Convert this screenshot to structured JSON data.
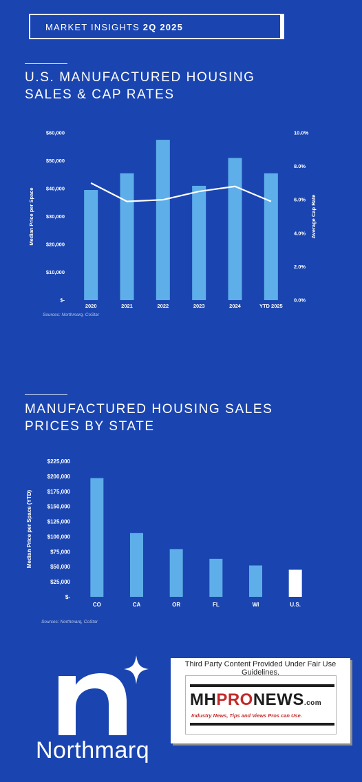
{
  "header": {
    "label_prefix": "MARKET INSIGHTS",
    "label_bold": "2Q 2025"
  },
  "colors": {
    "background": "#1a45b0",
    "bar": "#5eaee9",
    "line": "#ffffff",
    "us_bar": "#ffffff"
  },
  "section1": {
    "title_line1": "U.S. MANUFACTURED HOUSING",
    "title_line2": "SALES & CAP RATES",
    "source": "Sources: Northmarq, CoStar"
  },
  "section2": {
    "title_line1": "MANUFACTURED HOUSING SALES",
    "title_line2": "PRICES BY STATE",
    "source": "Sources: Northmarq, CoStar"
  },
  "chart_data": [
    {
      "type": "bar",
      "categories": [
        "2020",
        "2021",
        "2022",
        "2023",
        "2024",
        "YTD 2025"
      ],
      "series": [
        {
          "values": [
            39500,
            45500,
            57500,
            41000,
            51000,
            45500
          ],
          "axis": "left"
        },
        {
          "type": "line",
          "values": [
            7.0,
            5.9,
            6.0,
            6.5,
            6.8,
            5.9
          ],
          "axis": "right"
        }
      ],
      "ylabel": "Median Price per Space",
      "y2label": "Average Cap Rate",
      "ylim": [
        0,
        60000
      ],
      "y2lim": [
        0,
        10
      ],
      "yticks": [
        "$-",
        "$10,000",
        "$20,000",
        "$30,000",
        "$40,000",
        "$50,000",
        "$60,000"
      ],
      "y2ticks": [
        "0.0%",
        "2.0%",
        "4.0%",
        "6.0%",
        "8.0%",
        "10.0%"
      ],
      "grid": false,
      "legend": "none"
    },
    {
      "type": "bar",
      "categories": [
        "CO",
        "CA",
        "OR",
        "FL",
        "WI",
        "U.S."
      ],
      "values": [
        197000,
        106000,
        79000,
        63000,
        52000,
        45000
      ],
      "highlight": "U.S.",
      "ylabel": "Median Price per Space (YTD)",
      "ylim": [
        0,
        225000
      ],
      "yticks": [
        "$-",
        "$25,000",
        "$50,000",
        "$75,000",
        "$100,000",
        "$125,000",
        "$150,000",
        "$175,000",
        "$200,000",
        "$225,000"
      ],
      "grid": false,
      "legend": "none"
    }
  ],
  "logo": {
    "brand": "Northmarq"
  },
  "fair_use": {
    "note": "Third Party Content Provided Under Fair Use Guidelines.",
    "logo_mh": "MH",
    "logo_pro": "PRO",
    "logo_news": "NEWS",
    "logo_com": ".com",
    "tagline": "Industry News, Tips and Views Pros can Use."
  }
}
